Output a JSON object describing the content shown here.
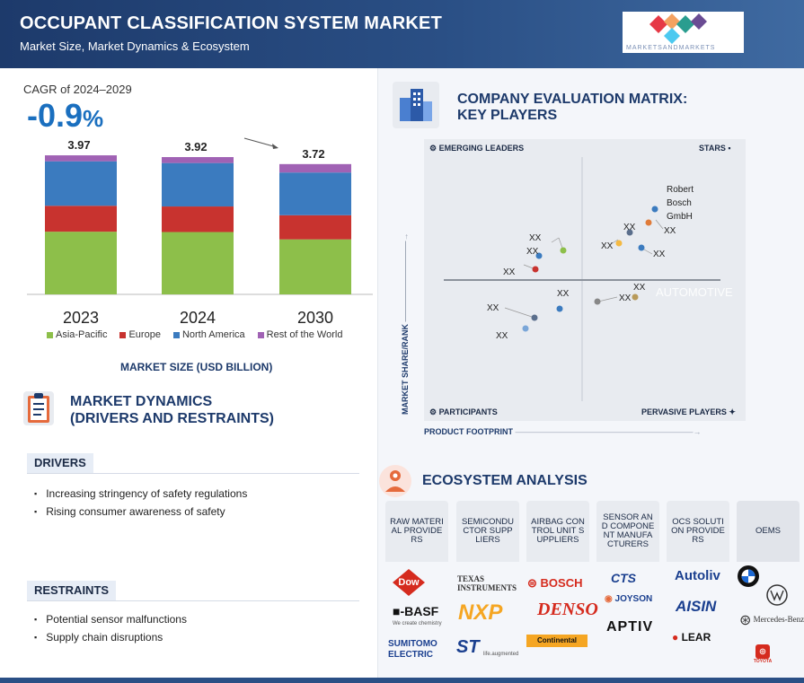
{
  "header": {
    "title": "OCCUPANT CLASSIFICATION SYSTEM MARKET",
    "subtitle": "Market Size, Market Dynamics & Ecosystem",
    "logo_caption": "MARKETSANDMARKETS",
    "logo_colors": [
      "#e63946",
      "#f4a261",
      "#2a9d8f",
      "#4cc9f0",
      "#6a4c93"
    ]
  },
  "cagr": {
    "label": "CAGR of 2024–2029",
    "value": "-0.9",
    "unit": "%"
  },
  "chart_data": {
    "type": "bar",
    "stacked": true,
    "categories": [
      "2023",
      "2024",
      "2030"
    ],
    "totals": [
      "3.97",
      "3.92",
      "3.72"
    ],
    "series": [
      {
        "name": "Asia-Pacific",
        "color": "#8dbf4a",
        "values": [
          1.79,
          1.78,
          1.57
        ]
      },
      {
        "name": "Europe",
        "color": "#c8332f",
        "values": [
          0.74,
          0.73,
          0.69
        ]
      },
      {
        "name": "North America",
        "color": "#3b7bbf",
        "values": [
          1.27,
          1.24,
          1.22
        ]
      },
      {
        "name": "Rest of the World",
        "color": "#a062b4",
        "values": [
          0.17,
          0.17,
          0.24
        ]
      }
    ],
    "xlabel": "MARKET SIZE (USD BILLION)",
    "ylim": [
      0,
      4.5
    ],
    "legend_position": "bottom"
  },
  "market_dynamics": {
    "title_line1": "MARKET DYNAMICS",
    "title_line2": "(DRIVERS AND RESTRAINTS)",
    "drivers_label": "DRIVERS",
    "drivers": [
      "Increasing stringency of safety regulations",
      "Rising consumer awareness of safety"
    ],
    "restraints_label": "RESTRAINTS",
    "restraints": [
      "Potential sensor malfunctions",
      "Supply chain disruptions"
    ]
  },
  "company_matrix": {
    "title_line1": "COMPANY EVALUATION MATRIX:",
    "title_line2": "KEY PLAYERS",
    "quadrants": {
      "top_left": "EMERGING LEADERS",
      "top_right": "STARS",
      "bottom_left": "PARTICIPANTS",
      "bottom_right": "PERVASIVE PLAYERS"
    },
    "y_axis": "MARKET SHARE/RANK",
    "x_axis": "PRODUCT FOOTPRINT",
    "watermark": "AUTOMOTIVE",
    "leader": {
      "line1": "Robert",
      "line2": "Bosch",
      "line3": "GmbH"
    },
    "placeholder": "XX",
    "dot_colors": [
      "#8dbf4a",
      "#3b7bbf",
      "#c8332f",
      "#f4b942",
      "#5a6e8c",
      "#b89a5a",
      "#e07b39",
      "#7aa6d8"
    ]
  },
  "ecosystem": {
    "title": "ECOSYSTEM ANALYSIS",
    "columns": [
      "RAW MATERIAL PROVIDERS",
      "SEMICONDUCTOR SUPPLIERS",
      "AIRBAG CONTROL UNIT SUPPLIERS",
      "SENSOR AND COMPONENT MANUFACTURERS",
      "OCS SOLUTION PROVIDERS",
      "OEMS"
    ],
    "brands": {
      "dow": "Dow",
      "basf": "■-BASF",
      "basf_tagline": "We create chemistry",
      "sumitomo": "SUMITOMO ELECTRIC",
      "ti": "TEXAS INSTRUMENTS",
      "nxp": "NXP",
      "st": "ST",
      "st_tagline": "life.augmented",
      "bosch": "BOSCH",
      "denso": "DENSO",
      "continental": "Continental",
      "cts": "CTS",
      "joyson": "JOYSON",
      "aptiv": "APTIV",
      "autoliv": "Autoliv",
      "aisin": "AISIN",
      "lear": "LEAR",
      "bmw": "BMW",
      "vw": "VW",
      "mercedes": "Mercedes-Benz",
      "toyota": "TOYOTA"
    }
  }
}
